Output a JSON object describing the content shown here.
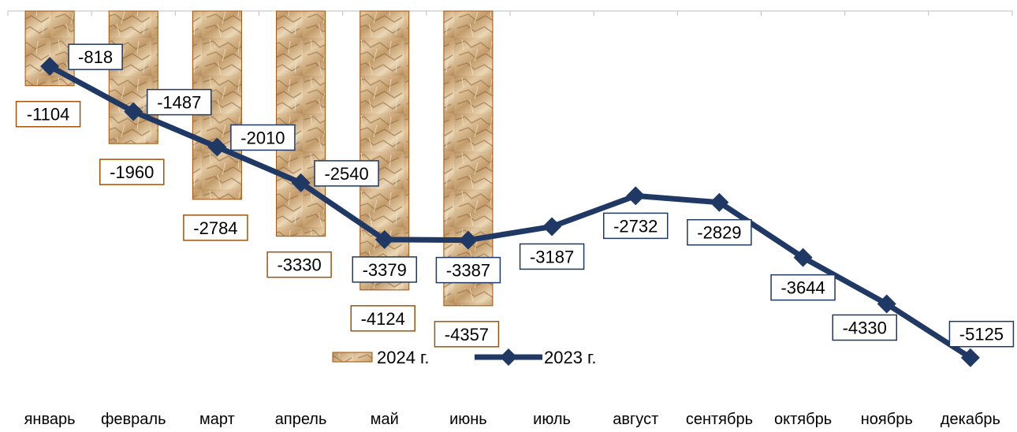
{
  "chart_data": {
    "type": "bar+line",
    "categories": [
      "январь",
      "февраль",
      "март",
      "апрель",
      "май",
      "июнь",
      "июль",
      "август",
      "сентябрь",
      "октябрь",
      "ноябрь",
      "декабрь"
    ],
    "series": [
      {
        "name": "2024 г.",
        "type": "bar",
        "values": [
          -1104,
          -1960,
          -2784,
          -3330,
          -4124,
          -4357,
          null,
          null,
          null,
          null,
          null,
          null
        ],
        "color": "#c8a67c",
        "border_color": "#a0520a",
        "label_border_color": "#a0520a"
      },
      {
        "name": "2023 г.",
        "type": "line",
        "values": [
          -818,
          -1487,
          -2010,
          -2540,
          -3379,
          -3387,
          -3187,
          -2732,
          -2829,
          -3644,
          -4330,
          -5125
        ],
        "color": "#1f3864",
        "label_border_color": "#1f3864"
      }
    ],
    "ylim": [
      -5500,
      0
    ],
    "grid": false,
    "legend": "bottom-center",
    "xtick_position": "bottom"
  }
}
